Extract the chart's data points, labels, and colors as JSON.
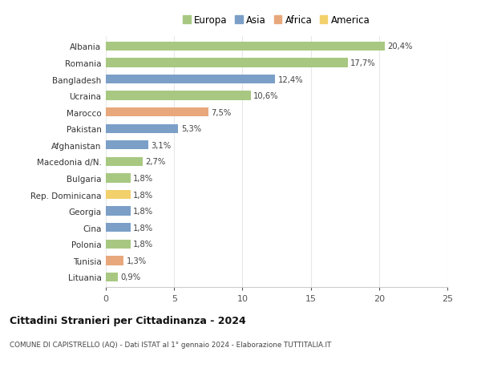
{
  "countries": [
    "Albania",
    "Romania",
    "Bangladesh",
    "Ucraina",
    "Marocco",
    "Pakistan",
    "Afghanistan",
    "Macedonia d/N.",
    "Bulgaria",
    "Rep. Dominicana",
    "Georgia",
    "Cina",
    "Polonia",
    "Tunisia",
    "Lituania"
  ],
  "values": [
    20.4,
    17.7,
    12.4,
    10.6,
    7.5,
    5.3,
    3.1,
    2.7,
    1.8,
    1.8,
    1.8,
    1.8,
    1.8,
    1.3,
    0.9
  ],
  "labels": [
    "20,4%",
    "17,7%",
    "12,4%",
    "10,6%",
    "7,5%",
    "5,3%",
    "3,1%",
    "2,7%",
    "1,8%",
    "1,8%",
    "1,8%",
    "1,8%",
    "1,8%",
    "1,3%",
    "0,9%"
  ],
  "continents": [
    "Europa",
    "Europa",
    "Asia",
    "Europa",
    "Africa",
    "Asia",
    "Asia",
    "Europa",
    "Europa",
    "America",
    "Asia",
    "Asia",
    "Europa",
    "Africa",
    "Europa"
  ],
  "colors": {
    "Europa": "#a8c882",
    "Asia": "#7b9fc7",
    "Africa": "#e8a87c",
    "America": "#f2d06b"
  },
  "legend_order": [
    "Europa",
    "Asia",
    "Africa",
    "America"
  ],
  "title_main": "Cittadini Stranieri per Cittadinanza - 2024",
  "title_sub": "COMUNE DI CAPISTRELLO (AQ) - Dati ISTAT al 1° gennaio 2024 - Elaborazione TUTTITALIA.IT",
  "xlim": [
    0,
    25
  ],
  "xticks": [
    0,
    5,
    10,
    15,
    20,
    25
  ],
  "bar_height": 0.55,
  "background_color": "#ffffff",
  "grid_color": "#e8e8e8"
}
